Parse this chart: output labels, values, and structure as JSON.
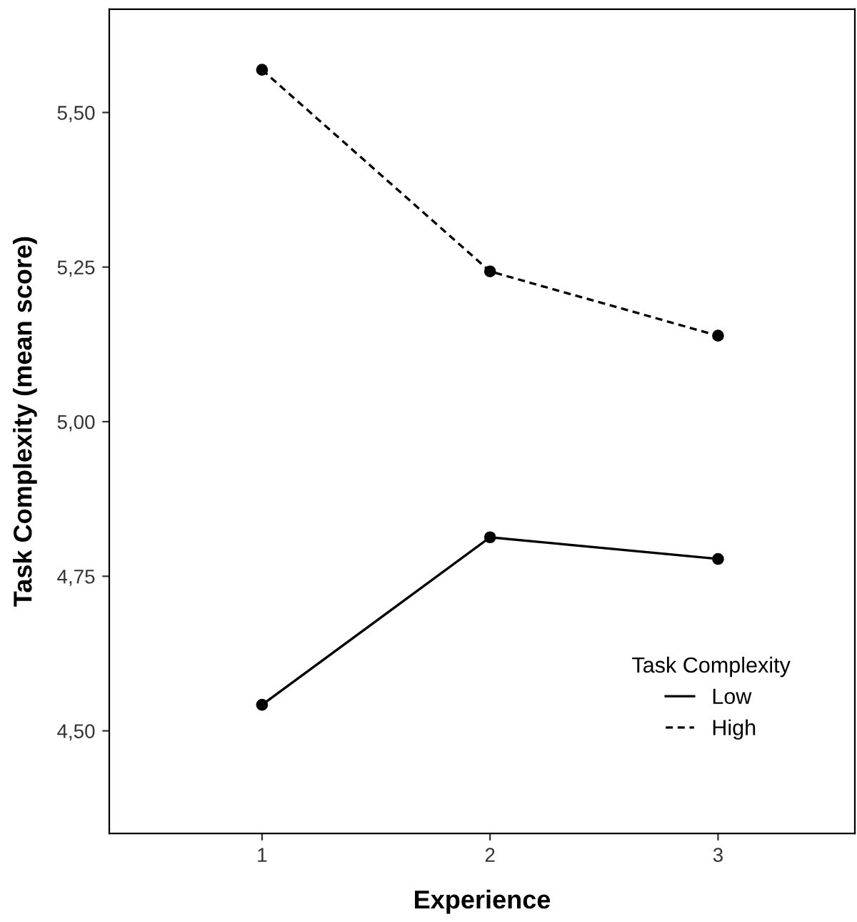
{
  "chart_data": {
    "type": "line",
    "xlabel": "Experience",
    "ylabel": "Task Complexity (mean score)",
    "legend_title": "Task Complexity",
    "legend": "bottom right",
    "marker": "circle",
    "grid": false,
    "x": [
      1,
      2,
      3
    ],
    "series": [
      {
        "name": "Low",
        "color": "#000000",
        "line_style": "solid",
        "values": [
          4.542,
          4.813,
          4.778
        ]
      },
      {
        "name": "High",
        "color": "#000000",
        "line_style": "dashed",
        "values": [
          5.569,
          5.243,
          5.139
        ]
      }
    ],
    "xlim": [
      0.33,
      3.6
    ],
    "xticks": [
      1,
      2,
      3
    ],
    "ylim": [
      4.334,
      5.667
    ],
    "yticks": [
      {
        "value": 4.5,
        "label": "4,50"
      },
      {
        "value": 4.75,
        "label": "4,75"
      },
      {
        "value": 5.0,
        "label": "5,00"
      },
      {
        "value": 5.25,
        "label": "5,25"
      },
      {
        "value": 5.5,
        "label": "5,50"
      }
    ]
  }
}
